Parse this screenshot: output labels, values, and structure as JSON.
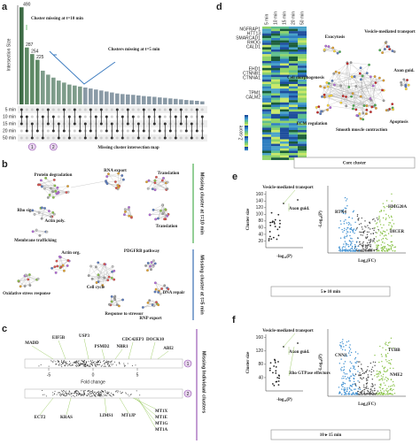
{
  "panel_a": {
    "letter": "a",
    "y_label": "Intersection Size",
    "values": [
      490,
      287,
      254,
      225,
      170,
      150,
      135,
      120,
      110,
      100,
      95,
      90,
      85,
      80,
      75,
      70,
      65,
      60,
      55,
      52,
      50,
      48,
      45,
      42,
      40,
      38,
      35,
      33,
      30,
      28,
      25,
      22,
      20,
      18,
      15
    ],
    "ylim": [
      0,
      500
    ],
    "annotation_10": "Cluster missing at t=10 min",
    "annotation_5": "Clusters missing at t=5 min",
    "rows": [
      "5 min",
      "10 min",
      "15 min",
      "20 min",
      "50 min"
    ],
    "markers": [
      "1",
      "2"
    ],
    "caption": "Missing cluster intersection map"
  },
  "panel_b": {
    "letter": "b",
    "top_labels": [
      "Protein degradation",
      "RNA export",
      "Translation",
      "Translation",
      "Rho sig.",
      "Actin poly.",
      "Membrane trafficking"
    ],
    "top_side": "Missing cluster at t=10 min",
    "bottom_labels": [
      "Actin org.",
      "PDGFRB pathway",
      "Oxidative stress response",
      "Cell cycle",
      "DNA repair",
      "Response to stressor",
      "RNP export"
    ],
    "bottom_side": "Missing cluster at t=5 min"
  },
  "panel_c": {
    "letter": "c",
    "top_genes": [
      "MADD",
      "EIF5B",
      "USP3",
      "PSMD2",
      "NBR1",
      "CDC42EP3",
      "DOCK10",
      "ABI2"
    ],
    "bottom_genes": [
      "ECT2",
      "KRAS",
      "LIMS1",
      "MT1JP",
      "MT1X",
      "MT1E",
      "MT1G",
      "MT1A"
    ],
    "axis_ticks": [
      -5,
      0,
      5
    ],
    "axis_label": "Fold change",
    "markers": [
      "1",
      "2"
    ],
    "side": "Missing Individual clusters"
  },
  "panel_d": {
    "letter": "d",
    "columns": [
      "5 min",
      "10 min",
      "15 min",
      "20 min",
      "50 min"
    ],
    "genes": [
      "NGFRAP1",
      "HTT13",
      "SMARCAD1",
      "RHOG",
      "CALD1",
      "EHD1",
      "CTNNB1",
      "CTNNA1",
      "TPM1",
      "CALM2"
    ],
    "legend": "Z-score",
    "network_labels": [
      "Exocytosis",
      "Vesicle-mediated transport",
      "Cell morphogenesis",
      "Axon guid.",
      "ECM regulation",
      "Smooth muscle contraction",
      "Apoptosis"
    ],
    "caption": "Core cluster"
  },
  "panel_e": {
    "letter": "e",
    "scatter": {
      "y_label": "Cluster size",
      "x_label": "-log₁₀(P)",
      "ylim": [
        0,
        170
      ],
      "yticks": [
        20,
        40,
        60,
        80,
        100,
        120,
        140,
        160
      ],
      "labels": [
        "Vesicle-mediated transport",
        "Axon guid."
      ]
    },
    "volcano": {
      "y_label": "-Log₁₀(P)",
      "x_label": "Log₂(FC)",
      "genes": [
        "RTN4",
        "HMG20A",
        "DICER"
      ]
    },
    "caption": "5 ▸ 10 min"
  },
  "panel_f": {
    "letter": "f",
    "scatter": {
      "y_label": "Cluster size",
      "x_label": "-log₁₀(P)",
      "ylim": [
        0,
        170
      ],
      "yticks": [
        40,
        80,
        120,
        160
      ],
      "labels": [
        "Vesicle-mediated transport",
        "Axon guid.",
        "Rho GTPase effectors"
      ]
    },
    "volcano": {
      "y_label": "-Log₁₀(P)",
      "x_label": "Log₂(FC)",
      "genes": [
        "CNN1",
        "TUBB",
        "NME2"
      ]
    },
    "caption": "10 ▸ 15 min"
  }
}
